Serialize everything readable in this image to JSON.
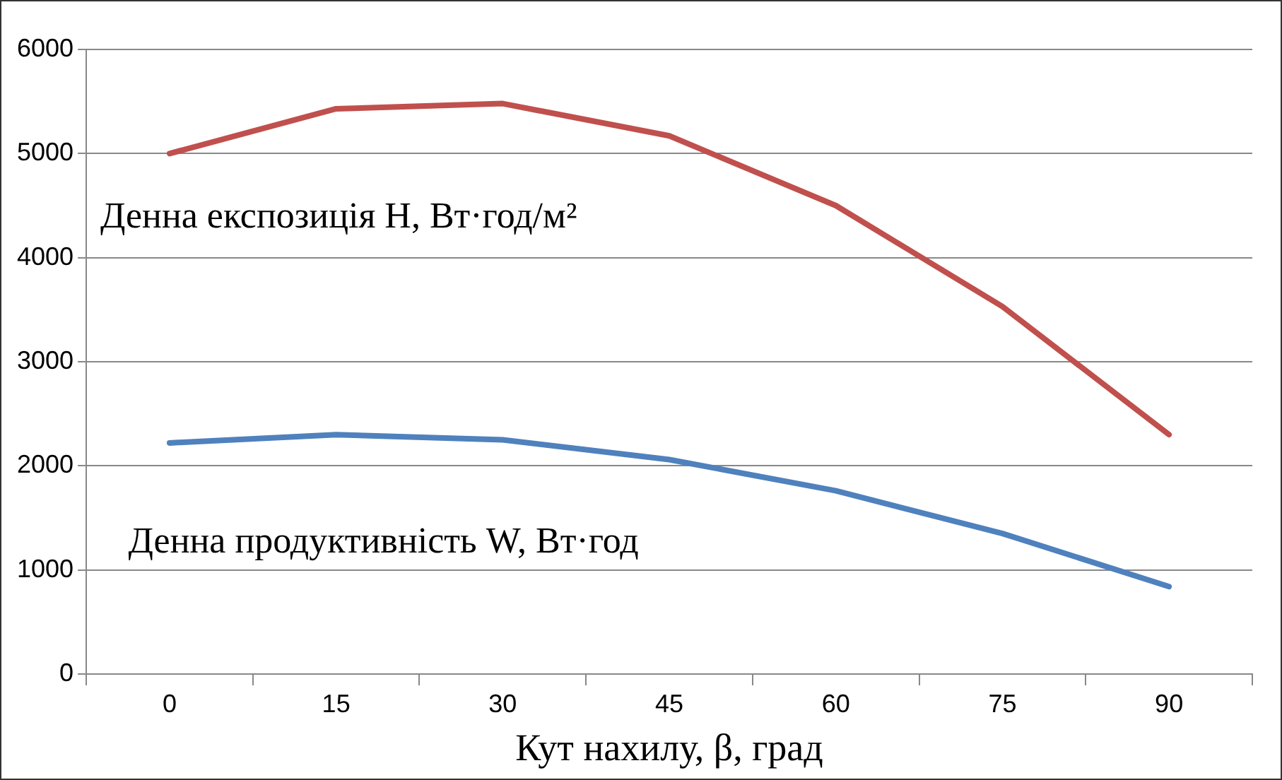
{
  "chart_data": {
    "type": "line",
    "xlabel": "Кут нахилу, β, град",
    "categories": [
      "0",
      "15",
      "30",
      "45",
      "60",
      "75",
      "90"
    ],
    "series": [
      {
        "name": "Денна експозиція H, Вт·год/м²",
        "color": "#c0504d",
        "values": [
          5000,
          5430,
          5480,
          5170,
          4500,
          3530,
          2300
        ]
      },
      {
        "name": "Денна продуктивність W, Вт·год",
        "color": "#4f81bd",
        "values": [
          2220,
          2300,
          2250,
          2060,
          1760,
          1350,
          840
        ]
      }
    ],
    "ylim": [
      0,
      6000
    ],
    "yticks": [
      0,
      1000,
      2000,
      3000,
      4000,
      5000,
      6000
    ],
    "grid": "y",
    "legend": false,
    "marker": "none",
    "line_style": "solid"
  }
}
